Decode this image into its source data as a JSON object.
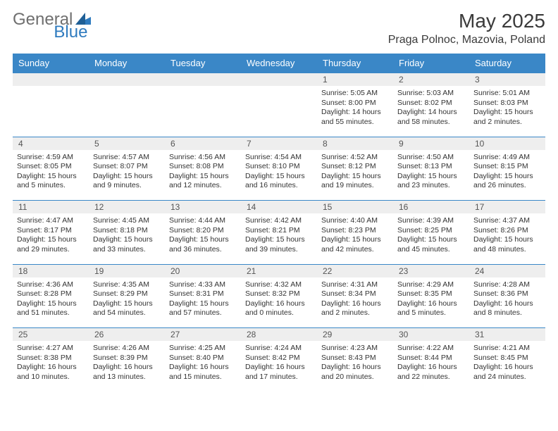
{
  "logo": {
    "part_a": "General",
    "part_b": "Blue"
  },
  "header": {
    "month_title": "May 2025",
    "location": "Praga Polnoc, Mazovia, Poland"
  },
  "colors": {
    "header_bg": "#3a87c7",
    "daynum_bg": "#eeeeee",
    "row_border": "#3a87c7"
  },
  "weekdays": [
    "Sunday",
    "Monday",
    "Tuesday",
    "Wednesday",
    "Thursday",
    "Friday",
    "Saturday"
  ],
  "weeks": [
    [
      null,
      null,
      null,
      null,
      {
        "n": "1",
        "sunrise": "Sunrise: 5:05 AM",
        "sunset": "Sunset: 8:00 PM",
        "daylight": "Daylight: 14 hours and 55 minutes."
      },
      {
        "n": "2",
        "sunrise": "Sunrise: 5:03 AM",
        "sunset": "Sunset: 8:02 PM",
        "daylight": "Daylight: 14 hours and 58 minutes."
      },
      {
        "n": "3",
        "sunrise": "Sunrise: 5:01 AM",
        "sunset": "Sunset: 8:03 PM",
        "daylight": "Daylight: 15 hours and 2 minutes."
      }
    ],
    [
      {
        "n": "4",
        "sunrise": "Sunrise: 4:59 AM",
        "sunset": "Sunset: 8:05 PM",
        "daylight": "Daylight: 15 hours and 5 minutes."
      },
      {
        "n": "5",
        "sunrise": "Sunrise: 4:57 AM",
        "sunset": "Sunset: 8:07 PM",
        "daylight": "Daylight: 15 hours and 9 minutes."
      },
      {
        "n": "6",
        "sunrise": "Sunrise: 4:56 AM",
        "sunset": "Sunset: 8:08 PM",
        "daylight": "Daylight: 15 hours and 12 minutes."
      },
      {
        "n": "7",
        "sunrise": "Sunrise: 4:54 AM",
        "sunset": "Sunset: 8:10 PM",
        "daylight": "Daylight: 15 hours and 16 minutes."
      },
      {
        "n": "8",
        "sunrise": "Sunrise: 4:52 AM",
        "sunset": "Sunset: 8:12 PM",
        "daylight": "Daylight: 15 hours and 19 minutes."
      },
      {
        "n": "9",
        "sunrise": "Sunrise: 4:50 AM",
        "sunset": "Sunset: 8:13 PM",
        "daylight": "Daylight: 15 hours and 23 minutes."
      },
      {
        "n": "10",
        "sunrise": "Sunrise: 4:49 AM",
        "sunset": "Sunset: 8:15 PM",
        "daylight": "Daylight: 15 hours and 26 minutes."
      }
    ],
    [
      {
        "n": "11",
        "sunrise": "Sunrise: 4:47 AM",
        "sunset": "Sunset: 8:17 PM",
        "daylight": "Daylight: 15 hours and 29 minutes."
      },
      {
        "n": "12",
        "sunrise": "Sunrise: 4:45 AM",
        "sunset": "Sunset: 8:18 PM",
        "daylight": "Daylight: 15 hours and 33 minutes."
      },
      {
        "n": "13",
        "sunrise": "Sunrise: 4:44 AM",
        "sunset": "Sunset: 8:20 PM",
        "daylight": "Daylight: 15 hours and 36 minutes."
      },
      {
        "n": "14",
        "sunrise": "Sunrise: 4:42 AM",
        "sunset": "Sunset: 8:21 PM",
        "daylight": "Daylight: 15 hours and 39 minutes."
      },
      {
        "n": "15",
        "sunrise": "Sunrise: 4:40 AM",
        "sunset": "Sunset: 8:23 PM",
        "daylight": "Daylight: 15 hours and 42 minutes."
      },
      {
        "n": "16",
        "sunrise": "Sunrise: 4:39 AM",
        "sunset": "Sunset: 8:25 PM",
        "daylight": "Daylight: 15 hours and 45 minutes."
      },
      {
        "n": "17",
        "sunrise": "Sunrise: 4:37 AM",
        "sunset": "Sunset: 8:26 PM",
        "daylight": "Daylight: 15 hours and 48 minutes."
      }
    ],
    [
      {
        "n": "18",
        "sunrise": "Sunrise: 4:36 AM",
        "sunset": "Sunset: 8:28 PM",
        "daylight": "Daylight: 15 hours and 51 minutes."
      },
      {
        "n": "19",
        "sunrise": "Sunrise: 4:35 AM",
        "sunset": "Sunset: 8:29 PM",
        "daylight": "Daylight: 15 hours and 54 minutes."
      },
      {
        "n": "20",
        "sunrise": "Sunrise: 4:33 AM",
        "sunset": "Sunset: 8:31 PM",
        "daylight": "Daylight: 15 hours and 57 minutes."
      },
      {
        "n": "21",
        "sunrise": "Sunrise: 4:32 AM",
        "sunset": "Sunset: 8:32 PM",
        "daylight": "Daylight: 16 hours and 0 minutes."
      },
      {
        "n": "22",
        "sunrise": "Sunrise: 4:31 AM",
        "sunset": "Sunset: 8:34 PM",
        "daylight": "Daylight: 16 hours and 2 minutes."
      },
      {
        "n": "23",
        "sunrise": "Sunrise: 4:29 AM",
        "sunset": "Sunset: 8:35 PM",
        "daylight": "Daylight: 16 hours and 5 minutes."
      },
      {
        "n": "24",
        "sunrise": "Sunrise: 4:28 AM",
        "sunset": "Sunset: 8:36 PM",
        "daylight": "Daylight: 16 hours and 8 minutes."
      }
    ],
    [
      {
        "n": "25",
        "sunrise": "Sunrise: 4:27 AM",
        "sunset": "Sunset: 8:38 PM",
        "daylight": "Daylight: 16 hours and 10 minutes."
      },
      {
        "n": "26",
        "sunrise": "Sunrise: 4:26 AM",
        "sunset": "Sunset: 8:39 PM",
        "daylight": "Daylight: 16 hours and 13 minutes."
      },
      {
        "n": "27",
        "sunrise": "Sunrise: 4:25 AM",
        "sunset": "Sunset: 8:40 PM",
        "daylight": "Daylight: 16 hours and 15 minutes."
      },
      {
        "n": "28",
        "sunrise": "Sunrise: 4:24 AM",
        "sunset": "Sunset: 8:42 PM",
        "daylight": "Daylight: 16 hours and 17 minutes."
      },
      {
        "n": "29",
        "sunrise": "Sunrise: 4:23 AM",
        "sunset": "Sunset: 8:43 PM",
        "daylight": "Daylight: 16 hours and 20 minutes."
      },
      {
        "n": "30",
        "sunrise": "Sunrise: 4:22 AM",
        "sunset": "Sunset: 8:44 PM",
        "daylight": "Daylight: 16 hours and 22 minutes."
      },
      {
        "n": "31",
        "sunrise": "Sunrise: 4:21 AM",
        "sunset": "Sunset: 8:45 PM",
        "daylight": "Daylight: 16 hours and 24 minutes."
      }
    ]
  ]
}
